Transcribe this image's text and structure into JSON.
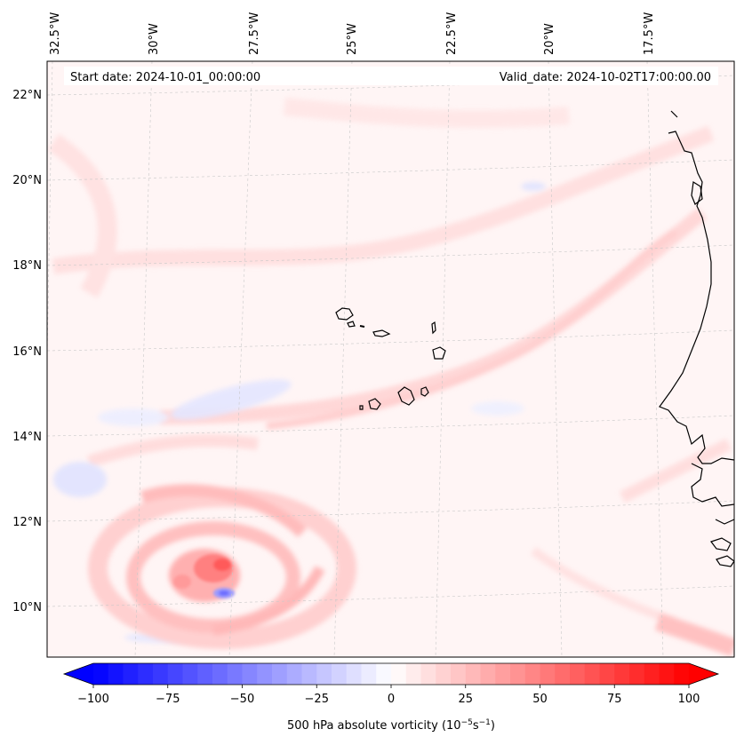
{
  "header": {
    "start_date": "Start date: 2024-10-01_00:00:00",
    "valid_date": "Valid_date: 2024-10-02T17:00:00.00"
  },
  "map": {
    "region": "Eastern tropical Atlantic, Cape Verde and West African coast",
    "lon_labels": [
      "32.5°W",
      "30°W",
      "27.5°W",
      "25°W",
      "22.5°W",
      "20°W",
      "17.5°W"
    ],
    "lat_labels": [
      "22°N",
      "20°N",
      "18°N",
      "16°N",
      "14°N",
      "12°N",
      "10°N"
    ]
  },
  "colorbar": {
    "label": "500 hPa absolute vorticity (10",
    "label_exp1": "−5",
    "label_mid": "s",
    "label_exp2": "−1",
    "label_end": ")",
    "vmin": -100,
    "vmax": 100,
    "ticks": [
      "−100",
      "−75",
      "−50",
      "−25",
      "0",
      "25",
      "50",
      "75",
      "100"
    ],
    "min_color": "#0000ff",
    "mid_color": "#ffffff",
    "max_color": "#ff0000"
  },
  "colors": {
    "frame": "#000000",
    "grid": "#b0b0b0",
    "coast": "#000000",
    "background_field": "#fff4f4"
  }
}
